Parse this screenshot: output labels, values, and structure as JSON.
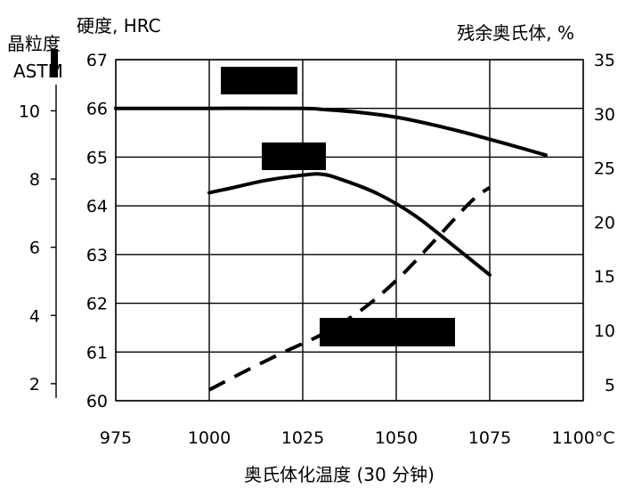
{
  "chart_data": {
    "type": "line",
    "title": "",
    "xlabel": "奥氏体化温度 (30 分钟)",
    "xunit_suffix": "°C",
    "x_ticks": [
      "975",
      "1000",
      "1025",
      "1050",
      "1075",
      "1100"
    ],
    "xlim": [
      975,
      1100
    ],
    "left_axis_label": "硬度, HRC",
    "left_ticks": [
      "60",
      "61",
      "62",
      "63",
      "64",
      "65",
      "66",
      "67"
    ],
    "left_ylim": [
      60,
      67
    ],
    "grain_axis_label_line1": "晶粒度",
    "grain_axis_label_line2": "ASTM",
    "grain_ticks": [
      "2",
      "4",
      "6",
      "8",
      "10"
    ],
    "grain_ylim": [
      1.5,
      11.5
    ],
    "right_axis_label": "残余奥氏体, %",
    "right_ticks": [
      "5",
      "10",
      "15",
      "20",
      "25",
      "30",
      "35"
    ],
    "right_ylim": [
      3.5,
      35
    ],
    "grid": true,
    "series": [
      {
        "axis": "left",
        "style": "solid",
        "x": [
          975,
          1000,
          1025,
          1030,
          1040,
          1050,
          1060,
          1070,
          1080,
          1090
        ],
        "y": [
          66.0,
          66.0,
          66.0,
          65.98,
          65.92,
          65.82,
          65.66,
          65.47,
          65.26,
          65.04
        ]
      },
      {
        "axis": "left",
        "style": "solid",
        "x": [
          1000,
          1005,
          1015,
          1025,
          1030,
          1035,
          1045,
          1055,
          1065,
          1075
        ],
        "y": [
          64.27,
          64.35,
          64.52,
          64.63,
          64.65,
          64.55,
          64.25,
          63.8,
          63.2,
          62.58
        ]
      },
      {
        "axis": "right",
        "style": "dashed",
        "x": [
          1000,
          1010,
          1020,
          1030,
          1040,
          1050,
          1060,
          1070,
          1075
        ],
        "y": [
          4.5,
          6.3,
          8.0,
          9.6,
          11.7,
          14.6,
          18.2,
          21.9,
          23.2
        ]
      }
    ],
    "redacted_boxes": 3
  }
}
